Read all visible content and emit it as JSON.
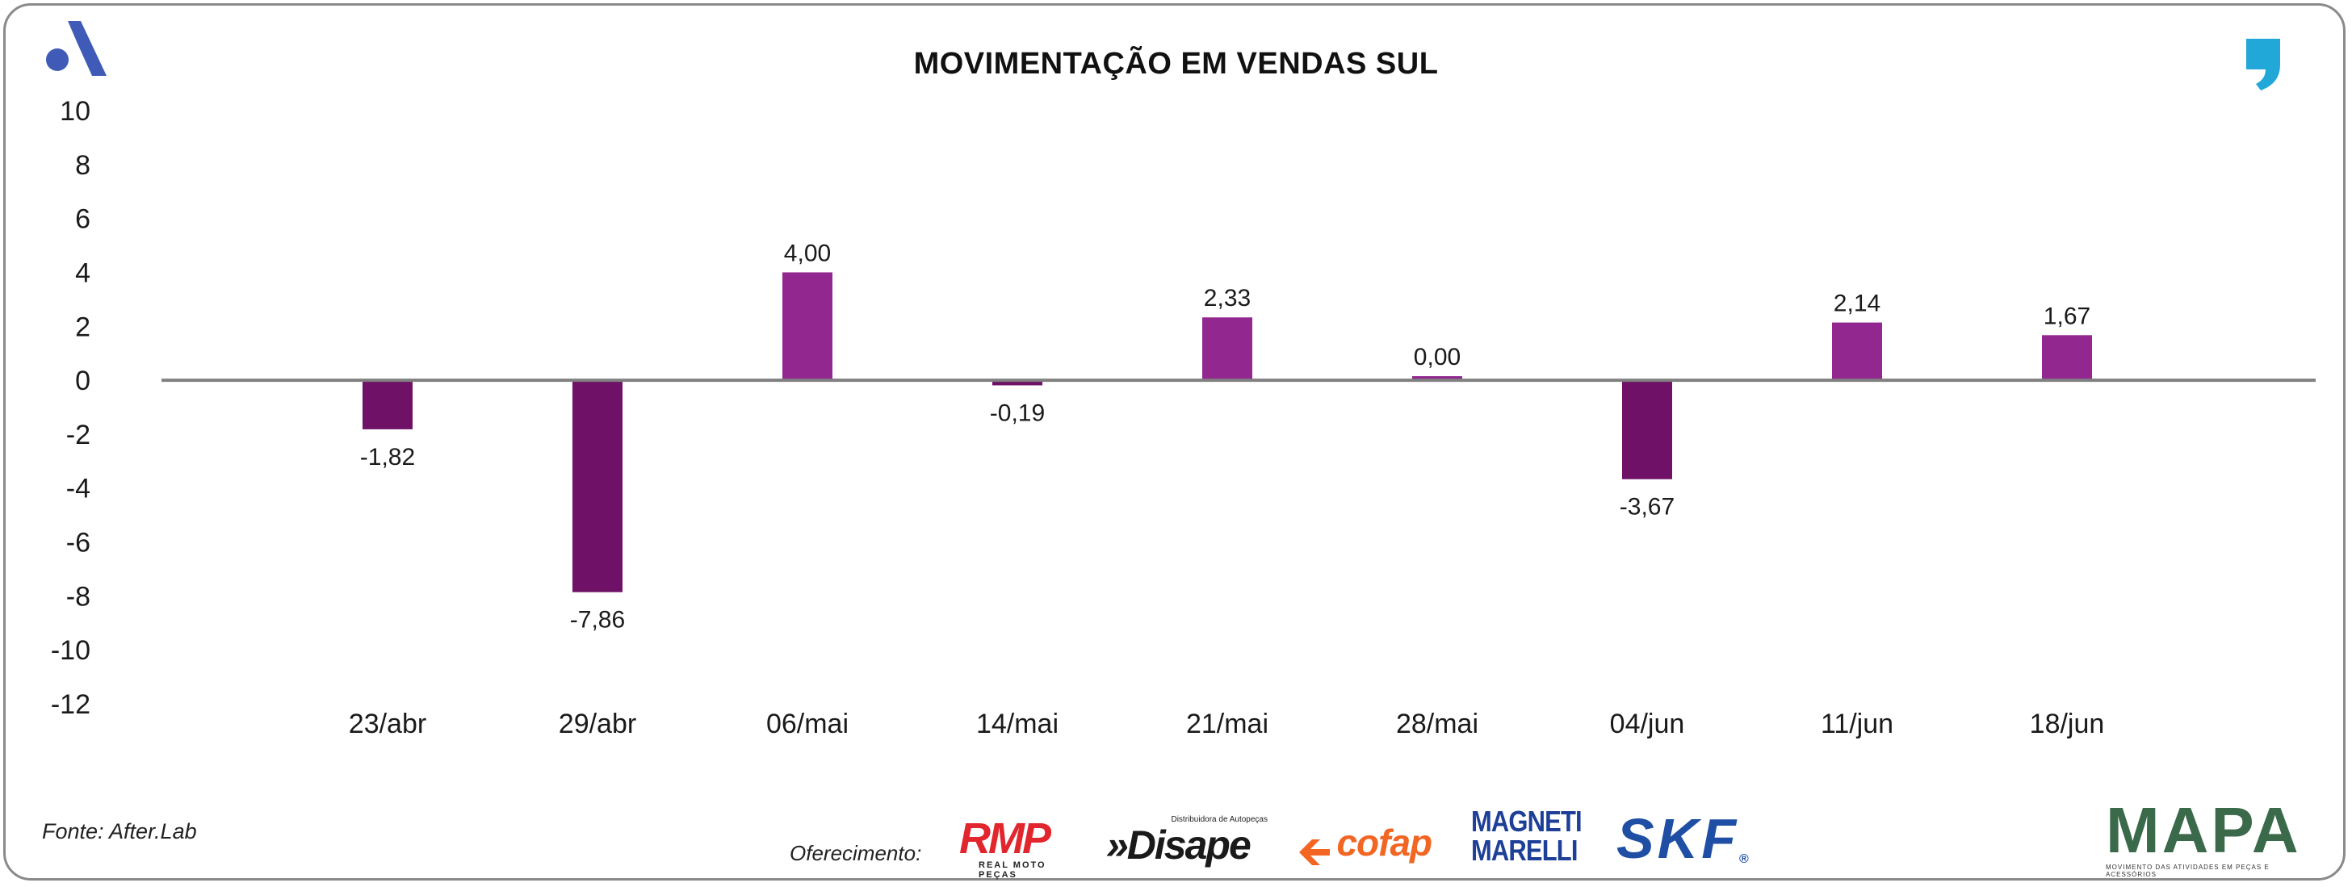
{
  "title": "MOVIMENTAÇÃO EM VENDAS SUL",
  "source": "Fonte: After.Lab",
  "offer_label": "Oferecimento:",
  "sponsors": {
    "rmp": "RMP",
    "rmp_sub": "REAL MOTO PEÇAS",
    "disape": "»Disape",
    "disape_sub": "Distribuidora de Autopeças",
    "cofap": "cofap",
    "magneti_1": "MAGNETI",
    "magneti_2": "MARELLI",
    "skf": "SKF",
    "skf_reg": "®",
    "mapa": "MAPA",
    "mapa_tagline": "MOVIMENTO DAS ATIVIDADES EM PEÇAS E ACESSÓRIOS"
  },
  "colors": {
    "positive": "#92278f",
    "negative": "#6e1167",
    "axis": "#808080",
    "brand_blue": "#3f5bb7",
    "brand_cyan": "#22a8d8"
  },
  "chart_data": {
    "type": "bar",
    "title": "MOVIMENTAÇÃO EM VENDAS SUL",
    "categories": [
      "23/abr",
      "29/abr",
      "06/mai",
      "14/mai",
      "21/mai",
      "28/mai",
      "04/jun",
      "11/jun",
      "18/jun"
    ],
    "values": [
      -1.82,
      -7.86,
      4.0,
      -0.19,
      2.33,
      0.0,
      -3.67,
      2.14,
      1.67
    ],
    "labels": [
      "-1,82",
      "-7,86",
      "4,00",
      "-0,19",
      "2,33",
      "0,00",
      "-3,67",
      "2,14",
      "1,67"
    ],
    "ylim": [
      -12,
      10
    ],
    "yticks": [
      10,
      8,
      6,
      4,
      2,
      0,
      -2,
      -4,
      -6,
      -8,
      -10,
      -12
    ],
    "xlabel": "",
    "ylabel": "",
    "grid": false,
    "legend": "none"
  }
}
